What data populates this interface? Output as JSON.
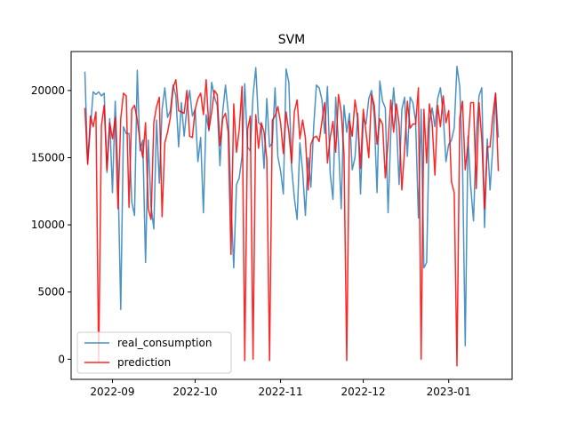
{
  "chart_data": {
    "type": "line",
    "title": "SVM",
    "xlabel": "",
    "ylabel": "",
    "x_ticks": [
      "2022-09",
      "2022-10",
      "2022-11",
      "2022-12",
      "2023-01"
    ],
    "y_ticks": [
      0,
      5000,
      10000,
      15000,
      20000
    ],
    "xlim": [
      "2022-08-17",
      "2023-01-24"
    ],
    "ylim": [
      -1500,
      22900
    ],
    "x_start": "2022-08-22",
    "x_step_days": 1,
    "grid": false,
    "legend_position": "lower-left",
    "series": [
      {
        "name": "real_consumption",
        "color": "#1f77b4",
        "values": [
          21400,
          14600,
          17200,
          19900,
          19700,
          19900,
          19600,
          19800,
          13900,
          17900,
          12400,
          19200,
          13800,
          3700,
          17300,
          16800,
          16800,
          11700,
          10700,
          21500,
          15500,
          16300,
          7200,
          16300,
          11400,
          9700,
          17800,
          13100,
          18600,
          20200,
          18000,
          18500,
          20400,
          19600,
          15800,
          19100,
          16600,
          18700,
          20000,
          18100,
          18600,
          14700,
          16500,
          10900,
          18200,
          17000,
          20600,
          19500,
          18900,
          14400,
          18400,
          20400,
          18400,
          11700,
          6800,
          13000,
          13500,
          15100,
          20500,
          15800,
          15500,
          19600,
          21700,
          17600,
          17400,
          14200,
          19400,
          15800,
          16100,
          20200,
          15100,
          14000,
          12300,
          21600,
          20600,
          14300,
          12000,
          10400,
          16100,
          14000,
          10700,
          15000,
          12800,
          17300,
          20400,
          20200,
          19300,
          16800,
          20300,
          13800,
          11900,
          19500,
          16100,
          11200,
          18900,
          16900,
          18300,
          14100,
          15000,
          18300,
          12300,
          17900,
          17500,
          19400,
          20000,
          18000,
          12400,
          20700,
          19200,
          18700,
          10900,
          16900,
          20200,
          17700,
          13000,
          18600,
          19500,
          15100,
          19500,
          19100,
          17700,
          10500,
          18600,
          6800,
          7200,
          17600,
          18700,
          17300,
          19400,
          20200,
          18200,
          14700,
          16000,
          16300,
          17200,
          21800,
          20300,
          14800,
          1000,
          16600,
          12800,
          10300,
          16700,
          19600,
          20200,
          9800,
          16400,
          12600,
          15800,
          19800,
          16500
        ],
        "stroke_opacity": 0.8
      },
      {
        "name": "prediction",
        "color": "#ff0000",
        "values": [
          18700,
          14500,
          18100,
          17300,
          18400,
          -200,
          17400,
          18900,
          14100,
          17600,
          16400,
          18000,
          11200,
          17900,
          19800,
          19600,
          11300,
          18600,
          18900,
          17800,
          16200,
          15000,
          17600,
          11200,
          10400,
          17600,
          18800,
          19500,
          10600,
          16100,
          16900,
          18000,
          20200,
          20800,
          18500,
          18400,
          18300,
          20000,
          16600,
          16500,
          18600,
          19400,
          19800,
          18200,
          20800,
          17100,
          18400,
          20000,
          19700,
          15900,
          17900,
          18300,
          16900,
          7800,
          19000,
          15400,
          17100,
          20300,
          -100,
          17100,
          18100,
          0,
          18200,
          15700,
          17600,
          16900,
          14900,
          -100,
          17800,
          18100,
          18800,
          17600,
          15300,
          18400,
          16900,
          14600,
          18400,
          19300,
          16400,
          17800,
          16500,
          12600,
          16000,
          16500,
          16600,
          16200,
          17700,
          19100,
          14600,
          16500,
          17700,
          15400,
          19700,
          18400,
          15300,
          -100,
          17700,
          16600,
          19300,
          17900,
          14200,
          18600,
          16900,
          15000,
          19700,
          18900,
          16000,
          17900,
          17500,
          13500,
          16200,
          19300,
          16900,
          19000,
          17500,
          12600,
          15600,
          19200,
          17200,
          17500,
          17500,
          20200,
          0,
          18600,
          14600,
          19000,
          17500,
          13700,
          18900,
          17300,
          19600,
          17600,
          18500,
          13200,
          12400,
          -500,
          17900,
          19200,
          14100,
          16000,
          19100,
          19100,
          12700,
          19100,
          16400,
          11200,
          15800,
          15800,
          18100,
          19800,
          14000
        ],
        "stroke_opacity": 0.85
      }
    ]
  }
}
